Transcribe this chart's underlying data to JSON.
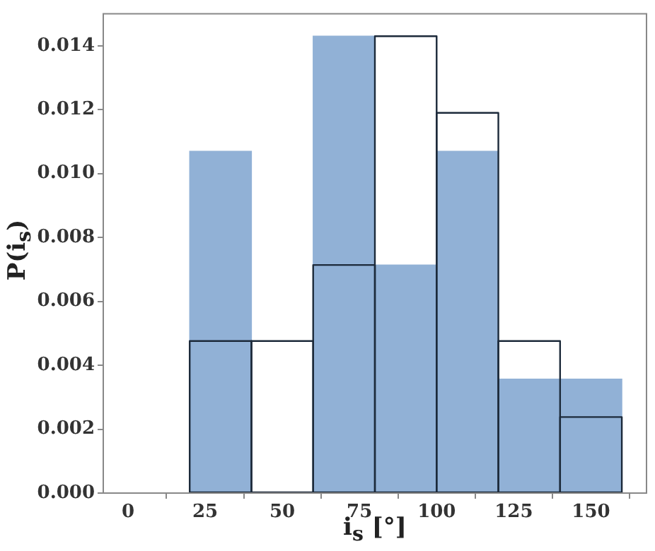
{
  "chart_data": {
    "type": "histogram",
    "xlabel": "i$_{s}$ [°]",
    "ylabel": "P(i$_{s}$)",
    "bins": [
      0,
      20,
      40,
      60,
      80,
      100,
      120,
      140,
      160
    ],
    "series": [
      {
        "color": "#91b1d6",
        "values": [
          0,
          0.0107,
          0,
          0.0143,
          0.00714,
          0.0107,
          0.00357,
          0.00357
        ]
      },
      {
        "color": "#1c2a3a",
        "line_style": "solid",
        "values": [
          0,
          0.00476,
          0.00476,
          0.00714,
          0.0143,
          0.0119,
          0.00476,
          0.00238
        ]
      }
    ],
    "xlim": [
      -8,
      168
    ],
    "xticks": [
      0,
      25,
      50,
      75,
      100,
      125,
      150
    ],
    "ylim": [
      0,
      0.015
    ],
    "yticks": [
      {
        "value": 0,
        "label": "0.000"
      },
      {
        "value": 0.002,
        "label": "0.002"
      },
      {
        "value": 0.004,
        "label": "0.004"
      },
      {
        "value": 0.006,
        "label": "0.006"
      },
      {
        "value": 0.008,
        "label": "0.008"
      },
      {
        "value": 0.01,
        "label": "0.010"
      },
      {
        "value": 0.012,
        "label": "0.012"
      },
      {
        "value": 0.014,
        "label": "0.014"
      }
    ],
    "grid": false,
    "legend": false
  }
}
